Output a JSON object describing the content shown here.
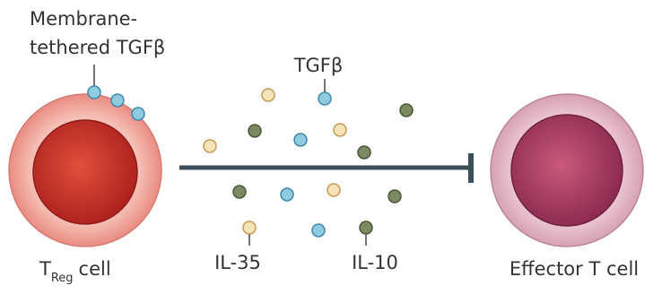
{
  "labels": {
    "membrane_tethered": [
      "Membrane-",
      "tethered TGFβ"
    ],
    "tgfb": "TGFβ",
    "il35": "IL-35",
    "il10": "IL-10",
    "treg": {
      "main": "T",
      "sub": "Reg",
      "suffix": "cell"
    },
    "effector": "Effector T cell"
  }
}
